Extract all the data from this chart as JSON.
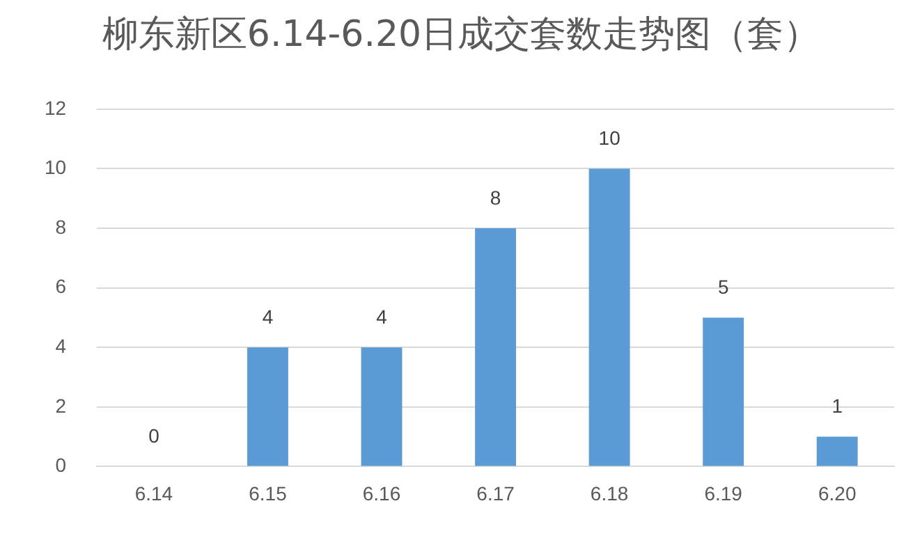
{
  "chart_data": {
    "type": "bar",
    "title": "柳东新区6.14-6.20日成交套数走势图（套）",
    "categories": [
      "6.14",
      "6.15",
      "6.16",
      "6.17",
      "6.18",
      "6.19",
      "6.20"
    ],
    "values": [
      0,
      4,
      4,
      8,
      10,
      5,
      1
    ],
    "color": "#5b9bd5",
    "ylim": [
      0,
      12
    ],
    "yticks": [
      0,
      2,
      4,
      6,
      8,
      10,
      12
    ],
    "grid": "y",
    "data_labels": true,
    "legend": false
  }
}
